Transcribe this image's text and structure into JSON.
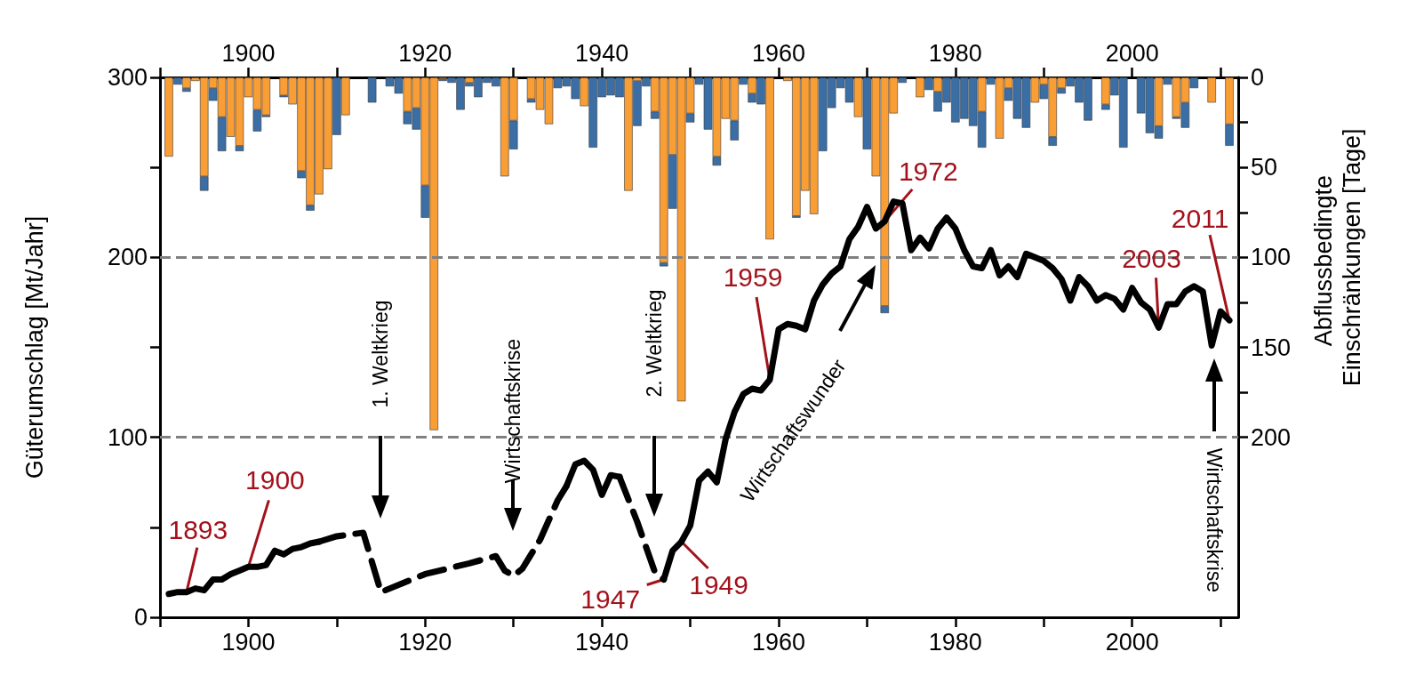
{
  "chart_data": {
    "type": "bar",
    "stacked": true,
    "ylabel": "Güterumschlag [Mt/Jahr]",
    "y2label": "Abflussbedingte Einschränkungen [Tage]",
    "xlim": [
      1890,
      2012
    ],
    "xticks": [
      {
        "value": 1890,
        "label": null
      },
      1900,
      {
        "value": 1910,
        "label": null
      },
      1920,
      {
        "value": 1930,
        "label": null
      },
      1940,
      {
        "value": 1950,
        "label": null
      },
      1960,
      {
        "value": 1970,
        "label": null
      },
      1980,
      {
        "value": 1990,
        "label": null
      },
      2000,
      {
        "value": 2010,
        "label": null
      }
    ],
    "x2lim": [
      1890,
      2012
    ],
    "x2ticks": [
      {
        "value": 1890,
        "label": null
      },
      1900,
      {
        "value": 1910,
        "label": null
      },
      1920,
      {
        "value": 1930,
        "label": null
      },
      1940,
      {
        "value": 1950,
        "label": null
      },
      1960,
      {
        "value": 1970,
        "label": null
      },
      1980,
      {
        "value": 1990,
        "label": null
      },
      2000,
      {
        "value": 2010,
        "label": null
      }
    ],
    "ylim": [
      0,
      300
    ],
    "yticks": [
      0,
      {
        "value": 50,
        "label": null
      },
      100,
      {
        "value": 150,
        "label": null
      },
      200,
      {
        "value": 250,
        "label": null
      },
      300
    ],
    "y2lim": [
      300,
      0
    ],
    "y2ticks": [
      0,
      {
        "value": 25,
        "label": null
      },
      50,
      {
        "value": 75,
        "label": null
      },
      100,
      {
        "value": 125,
        "label": null
      },
      150,
      {
        "value": 175,
        "label": null
      },
      200
    ],
    "x": [
      1891,
      1892,
      1893,
      1894,
      1895,
      1896,
      1897,
      1898,
      1899,
      1900,
      1901,
      1902,
      1903,
      1904,
      1905,
      1906,
      1907,
      1908,
      1909,
      1910,
      1911,
      1912,
      1913,
      1914,
      1915,
      1916,
      1917,
      1918,
      1919,
      1920,
      1921,
      1922,
      1923,
      1924,
      1925,
      1926,
      1927,
      1928,
      1929,
      1930,
      1931,
      1932,
      1933,
      1934,
      1935,
      1936,
      1937,
      1938,
      1939,
      1940,
      1941,
      1942,
      1943,
      1944,
      1945,
      1946,
      1947,
      1948,
      1949,
      1950,
      1951,
      1952,
      1953,
      1954,
      1955,
      1956,
      1957,
      1958,
      1959,
      1960,
      1961,
      1962,
      1963,
      1964,
      1965,
      1966,
      1967,
      1968,
      1969,
      1970,
      1971,
      1972,
      1973,
      1974,
      1975,
      1976,
      1977,
      1978,
      1979,
      1980,
      1981,
      1982,
      1983,
      1984,
      1985,
      1986,
      1987,
      1988,
      1989,
      1990,
      1991,
      1992,
      1993,
      1994,
      1995,
      1996,
      1997,
      1998,
      1999,
      2000,
      2001,
      2002,
      2003,
      2004,
      2005,
      2006,
      2007,
      2008,
      2009,
      2010,
      2011
    ],
    "series": [
      {
        "axis": "y2",
        "color": "#f99d35",
        "values": [
          44,
          0,
          6,
          2,
          55,
          6,
          22,
          33,
          38,
          11,
          18,
          21,
          0,
          10,
          15,
          52,
          71,
          65,
          51,
          0,
          21,
          0,
          0,
          0,
          0,
          0,
          0,
          19,
          17,
          60,
          196,
          1,
          0,
          0,
          3,
          0,
          0,
          0,
          55,
          24,
          0,
          12,
          18,
          26,
          0,
          0,
          0,
          16,
          0,
          0,
          0,
          0,
          63,
          2,
          0,
          19,
          103,
          43,
          180,
          20,
          0,
          0,
          44,
          23,
          24,
          0,
          9,
          0,
          90,
          0,
          2,
          77,
          63,
          76,
          0,
          0,
          0,
          0,
          22,
          0,
          55,
          127,
          20,
          0,
          0,
          11,
          0,
          8,
          0,
          0,
          0,
          0,
          19,
          0,
          34,
          6,
          0,
          0,
          14,
          4,
          33,
          6,
          0,
          0,
          0,
          0,
          15,
          0,
          0,
          0,
          0,
          0,
          27,
          0,
          22,
          14,
          0,
          0,
          14,
          0,
          26
        ]
      },
      {
        "axis": "y2",
        "color": "#3a6ea5",
        "values": [
          0,
          4,
          2,
          0,
          8,
          7,
          19,
          0,
          3,
          0,
          12,
          1,
          0,
          1,
          0,
          4,
          3,
          0,
          0,
          32,
          0,
          0,
          0,
          14,
          0,
          5,
          9,
          7,
          12,
          18,
          0,
          1,
          3,
          18,
          2,
          11,
          3,
          5,
          0,
          16,
          0,
          2,
          0,
          0,
          6,
          5,
          12,
          0,
          39,
          11,
          10,
          11,
          0,
          25,
          5,
          4,
          2,
          30,
          0,
          5,
          4,
          29,
          5,
          0,
          11,
          4,
          5,
          15,
          0,
          0,
          0,
          1,
          0,
          0,
          41,
          17,
          6,
          14,
          0,
          40,
          0,
          4,
          0,
          3,
          0,
          0,
          7,
          11,
          14,
          25,
          23,
          27,
          20,
          4,
          0,
          7,
          23,
          28,
          0,
          8,
          5,
          3,
          5,
          14,
          24,
          0,
          3,
          10,
          39,
          0,
          20,
          31,
          7,
          4,
          1,
          14,
          6,
          0,
          0,
          0,
          12
        ]
      },
      {
        "type": "line",
        "color": "#000000",
        "line_style": "solid",
        "x": [
          1891,
          1892,
          1893,
          1894,
          1895,
          1896,
          1897,
          1898,
          1899,
          1900,
          1901,
          1902,
          1903,
          1904,
          1905,
          1906,
          1907,
          1908
        ],
        "values": [
          13,
          14,
          14,
          16,
          15,
          21,
          21,
          24,
          26,
          28,
          28,
          29,
          37,
          35,
          38,
          39,
          41,
          42
        ]
      },
      {
        "type": "line",
        "color": "#000000",
        "line_style": "dashed",
        "x": [
          1908,
          1910,
          1913,
          1915,
          1920,
          1925,
          1928,
          1929,
          1930,
          1931,
          1933,
          1935,
          1936
        ],
        "values": [
          42,
          45,
          47,
          14,
          24,
          30,
          34,
          26,
          23,
          27,
          43,
          65,
          73
        ]
      },
      {
        "type": "line",
        "color": "#000000",
        "line_style": "solid",
        "x": [
          1936,
          1937,
          1938,
          1939,
          1940,
          1941,
          1942
        ],
        "values": [
          73,
          85,
          87,
          82,
          68,
          79,
          78
        ]
      },
      {
        "type": "line",
        "color": "#000000",
        "line_style": "dashed",
        "x": [
          1942,
          1944,
          1945,
          1946,
          1947
        ],
        "values": [
          78,
          53,
          39,
          25,
          21
        ]
      },
      {
        "type": "line",
        "color": "#000000",
        "line_style": "solid",
        "x": [
          1947,
          1948,
          1949,
          1950,
          1951,
          1952,
          1953,
          1954,
          1955,
          1956,
          1957,
          1958,
          1959,
          1960,
          1961,
          1962,
          1963,
          1964,
          1965,
          1966,
          1967,
          1968,
          1969,
          1970,
          1971,
          1972,
          1973,
          1974,
          1975,
          1976,
          1977,
          1978,
          1979,
          1980,
          1981,
          1982,
          1983,
          1984,
          1985,
          1986,
          1987,
          1988,
          1989,
          1990,
          1991,
          1992,
          1993,
          1994,
          1995,
          1996,
          1997,
          1998,
          1999,
          2000,
          2001,
          2002,
          2003,
          2004,
          2005,
          2006,
          2007,
          2008,
          2009,
          2010,
          2011
        ],
        "values": [
          21,
          37,
          42,
          51,
          76,
          81,
          75,
          99,
          114,
          124,
          127,
          126,
          132,
          160,
          163,
          162,
          160,
          176,
          185,
          191,
          195,
          210,
          217,
          228,
          216,
          220,
          231,
          230,
          204,
          211,
          205,
          216,
          222,
          216,
          204,
          195,
          194,
          204,
          190,
          195,
          189,
          202,
          200,
          198,
          194,
          188,
          176,
          189,
          184,
          176,
          179,
          177,
          171,
          183,
          175,
          171,
          161,
          174,
          174,
          181,
          184,
          181,
          151,
          170,
          165
        ]
      }
    ],
    "ref_lines": [
      {
        "axis": "y",
        "value": 100,
        "color": "#808080",
        "line_style": "dashed"
      },
      {
        "axis": "y",
        "value": 200,
        "color": "#808080",
        "line_style": "dashed"
      }
    ],
    "annotations": [
      {
        "text": "1893",
        "x": 1893,
        "y": 14
      },
      {
        "text": "1900",
        "x": 1900,
        "y": 28
      },
      {
        "text": "1947",
        "x": 1947,
        "y": 21
      },
      {
        "text": "1949",
        "x": 1949,
        "y": 42
      },
      {
        "text": "1959",
        "x": 1959,
        "y": 132
      },
      {
        "text": "1972",
        "x": 1972,
        "y": 220
      },
      {
        "text": "2003",
        "x": 2003,
        "y": 161
      },
      {
        "text": "2011",
        "x": 2011,
        "y": 165
      },
      "1. Weltkrieg",
      "Wirtschaftskrise",
      "2. Weltkrieg",
      "Wirtschaftswunder",
      "Wirtschaftskrise"
    ]
  }
}
